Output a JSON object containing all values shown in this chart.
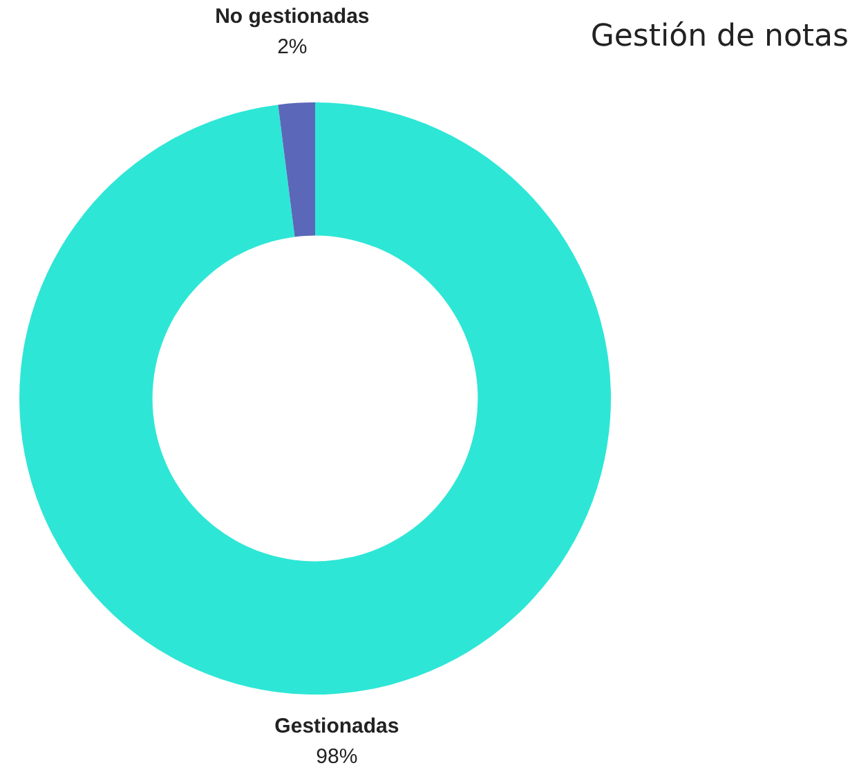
{
  "chart_data": {
    "type": "donut",
    "title": "Gestión de notas",
    "categories": [
      "Gestionadas",
      "No gestionadas"
    ],
    "values": [
      98,
      2
    ],
    "colors": [
      "#2ee6d6",
      "#5b67b8"
    ],
    "value_labels": [
      "98%",
      "2%"
    ],
    "legend": false
  }
}
